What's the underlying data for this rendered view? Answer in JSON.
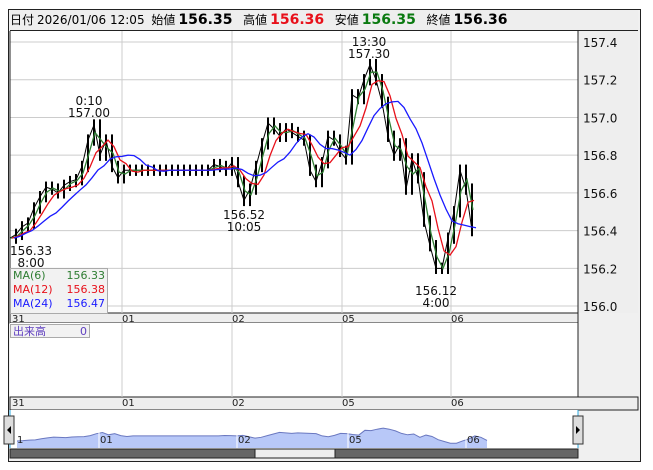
{
  "header": {
    "date_label": "日付",
    "datetime": "2026/01/06 12:05",
    "open_label": "始値",
    "open": "156.35",
    "high_label": "高値",
    "high": "156.36",
    "low_label": "安値",
    "low": "156.35",
    "close_label": "終値",
    "close": "156.36"
  },
  "colors": {
    "high": "#e8101a",
    "low": "#0a7a10",
    "ma6": "#2e7d32",
    "ma12": "#e8101a",
    "ma24": "#1a1aff",
    "price": "#000000",
    "navigator_fill": "#b8c8f8",
    "navigator_line": "#6a78c0"
  },
  "legend": [
    {
      "name": "MA(6)",
      "value": "156.33"
    },
    {
      "name": "MA(12)",
      "value": "156.38"
    },
    {
      "name": "MA(24)",
      "value": "156.47"
    }
  ],
  "volume": {
    "label": "出来高",
    "value": "0"
  },
  "annotations": [
    {
      "time": "0:10",
      "price": "157.00"
    },
    {
      "time": "13:30",
      "price": "157.30"
    },
    {
      "price": "156.33",
      "time": "8:00"
    },
    {
      "price": "156.52",
      "time": "10:05"
    },
    {
      "price": "156.12",
      "time": "4:00"
    }
  ],
  "navigator": {
    "labels": [
      "1",
      "01",
      "02",
      "05",
      "06"
    ]
  },
  "chart_data": {
    "type": "line",
    "ylim": [
      156.0,
      157.45
    ],
    "yticks": [
      "157.4",
      "157.2",
      "157.0",
      "156.8",
      "156.6",
      "156.4",
      "156.2",
      "156.0"
    ],
    "xticks": [
      "31",
      "01",
      "02",
      "05",
      "06"
    ],
    "grid": true,
    "legend_position": "bottom-left",
    "ma_periods": [
      6,
      12,
      24
    ],
    "series": [
      {
        "values": [
          156.36,
          156.38,
          156.42,
          156.44,
          156.52,
          156.58,
          156.63,
          156.62,
          156.6,
          156.64,
          156.66,
          156.67,
          156.74,
          156.88,
          156.96,
          156.8,
          156.88,
          156.74,
          156.68,
          156.72,
          156.72,
          156.72,
          156.72,
          156.72,
          156.72,
          156.72,
          156.72,
          156.72,
          156.72,
          156.72,
          156.72,
          156.72,
          156.72,
          156.72,
          156.75,
          156.74,
          156.72,
          156.76,
          156.66,
          156.56,
          156.62,
          156.74,
          156.86,
          156.97,
          156.94,
          156.9,
          156.94,
          156.92,
          156.9,
          156.88,
          156.72,
          156.66,
          156.76,
          156.9,
          156.88,
          156.82,
          156.78,
          157.12,
          157.1,
          157.2,
          157.28,
          157.2,
          157.08,
          156.9,
          156.8,
          156.86,
          156.62,
          156.78,
          156.68,
          156.45,
          156.32,
          156.2,
          156.2,
          156.36,
          156.5,
          156.72,
          156.62,
          156.4
        ]
      }
    ]
  }
}
